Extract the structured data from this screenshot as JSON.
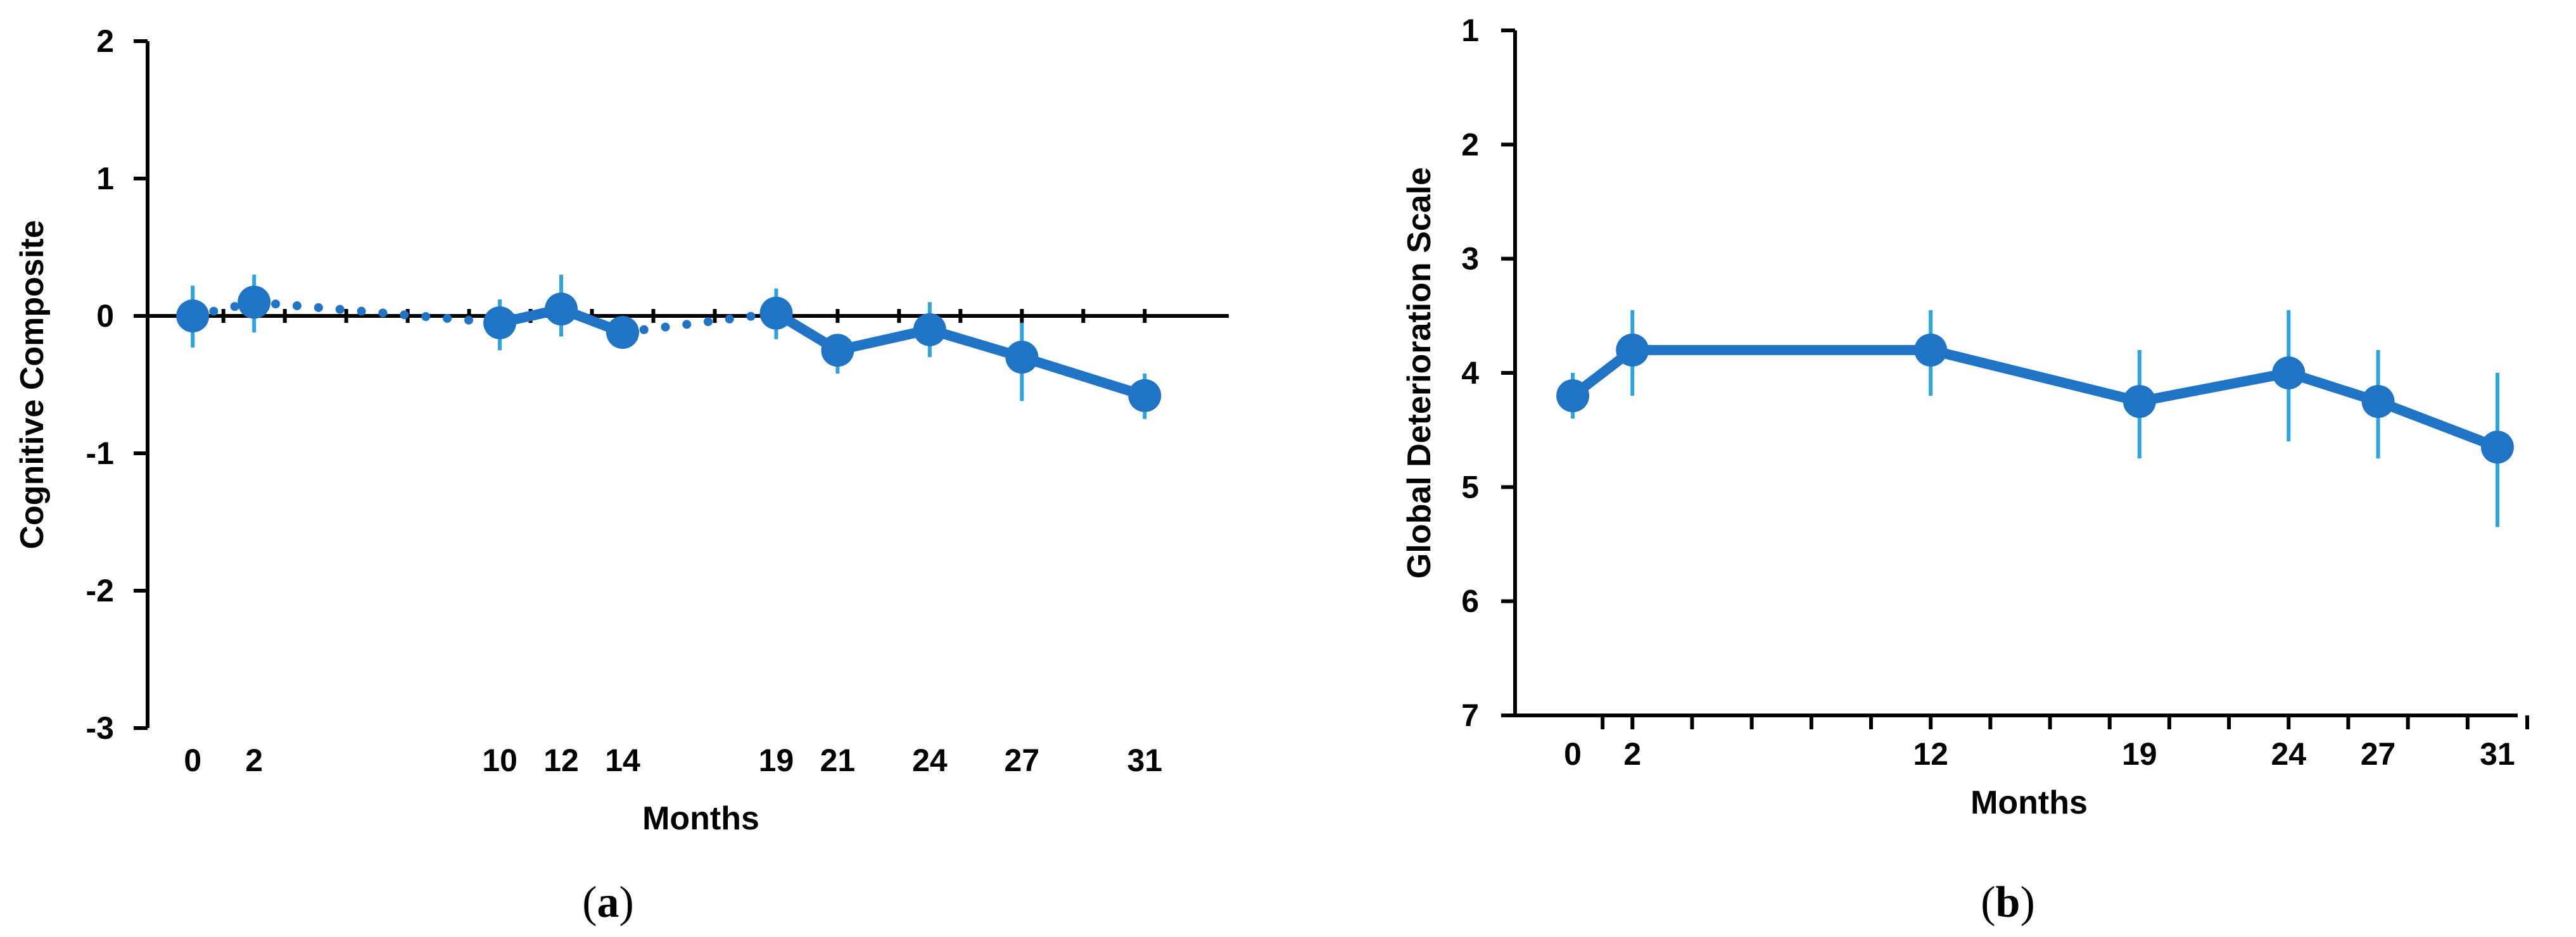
{
  "colors": {
    "series": "#1F74C6",
    "error_bar": "#2DA3E0",
    "axis": "#000000"
  },
  "chart_data": [
    {
      "panel_label": "a",
      "type": "line",
      "xlabel": "Months",
      "ylabel": "Cognitive Composite",
      "ylim": [
        -3,
        2
      ],
      "yticks": [
        2,
        1,
        0,
        -1,
        -2,
        -3
      ],
      "xlim": [
        -0.5,
        32.5
      ],
      "xtick_labels": [
        0,
        2,
        10,
        12,
        14,
        19,
        21,
        24,
        27,
        31
      ],
      "x_axis_at_y": 0,
      "grid": false,
      "legend": "none",
      "series": [
        {
          "x": [
            0,
            2,
            10,
            12,
            14,
            19,
            21,
            24,
            27,
            31
          ],
          "y": [
            0.0,
            0.1,
            -0.05,
            0.05,
            -0.12,
            0.02,
            -0.25,
            -0.1,
            -0.3,
            -0.58
          ],
          "err_low": [
            -0.23,
            -0.12,
            -0.25,
            -0.15,
            -0.18,
            -0.17,
            -0.42,
            -0.3,
            -0.62,
            -0.75
          ],
          "err_high": [
            0.22,
            0.3,
            0.12,
            0.3,
            -0.07,
            0.2,
            -0.15,
            0.1,
            -0.05,
            -0.42
          ],
          "segment_styles": [
            "dotted",
            "dotted",
            "solid",
            "solid",
            "dotted",
            "solid",
            "solid",
            "solid",
            "solid"
          ]
        }
      ]
    },
    {
      "panel_label": "b",
      "type": "line",
      "xlabel": "Months",
      "ylabel": "Global Deterioration Scale",
      "ylim": [
        1,
        7
      ],
      "y_inverted": true,
      "yticks": [
        1,
        2,
        3,
        4,
        5,
        6,
        7
      ],
      "xlim": [
        -1,
        32
      ],
      "xtick_labels": [
        0,
        2,
        12,
        19,
        24,
        27,
        31
      ],
      "x_minor_ticks": [
        1,
        2,
        4,
        6,
        8,
        10,
        12,
        14,
        16,
        18,
        20,
        22,
        24,
        26,
        28,
        30,
        32
      ],
      "grid": false,
      "legend": "none",
      "series": [
        {
          "x": [
            0,
            2,
            12,
            19,
            24,
            27,
            31
          ],
          "y": [
            4.2,
            3.8,
            3.8,
            4.25,
            4.0,
            4.25,
            4.65
          ],
          "err_low": [
            4.0,
            3.45,
            3.45,
            3.8,
            3.45,
            3.8,
            4.0
          ],
          "err_high": [
            4.4,
            4.2,
            4.2,
            4.75,
            4.6,
            4.75,
            5.35
          ]
        }
      ]
    }
  ]
}
